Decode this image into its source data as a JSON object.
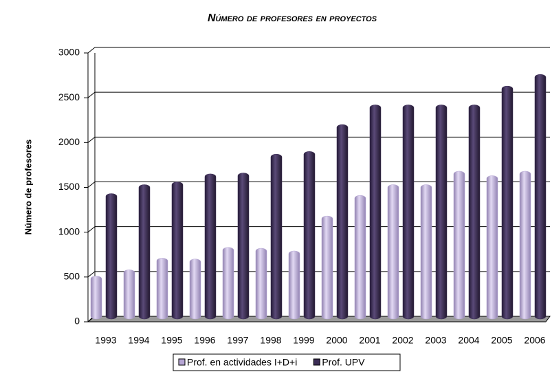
{
  "chart_data": {
    "type": "bar",
    "title": "Número de profesores en proyectos",
    "y_label": "Número de profesores",
    "categories": [
      "1993",
      "1994",
      "1995",
      "1996",
      "1997",
      "1998",
      "1999",
      "2000",
      "2001",
      "2002",
      "2003",
      "2004",
      "2005",
      "2006"
    ],
    "series": [
      {
        "name": "Prof. en actividades I+D+i",
        "color": "#b6a6d4",
        "values": [
          480,
          550,
          680,
          670,
          800,
          790,
          760,
          1150,
          1380,
          1500,
          1500,
          1650,
          1600,
          1650
        ]
      },
      {
        "name": "Prof. UPV",
        "color": "#3b2d55",
        "values": [
          1400,
          1500,
          1530,
          1620,
          1630,
          1840,
          1870,
          2170,
          2390,
          2390,
          2390,
          2390,
          2600,
          2730
        ]
      }
    ],
    "ylim": [
      0,
      3000
    ],
    "yticks": [
      0,
      500,
      1000,
      1500,
      2000,
      2500,
      3000
    ],
    "grid": true,
    "legend": "bottom"
  }
}
